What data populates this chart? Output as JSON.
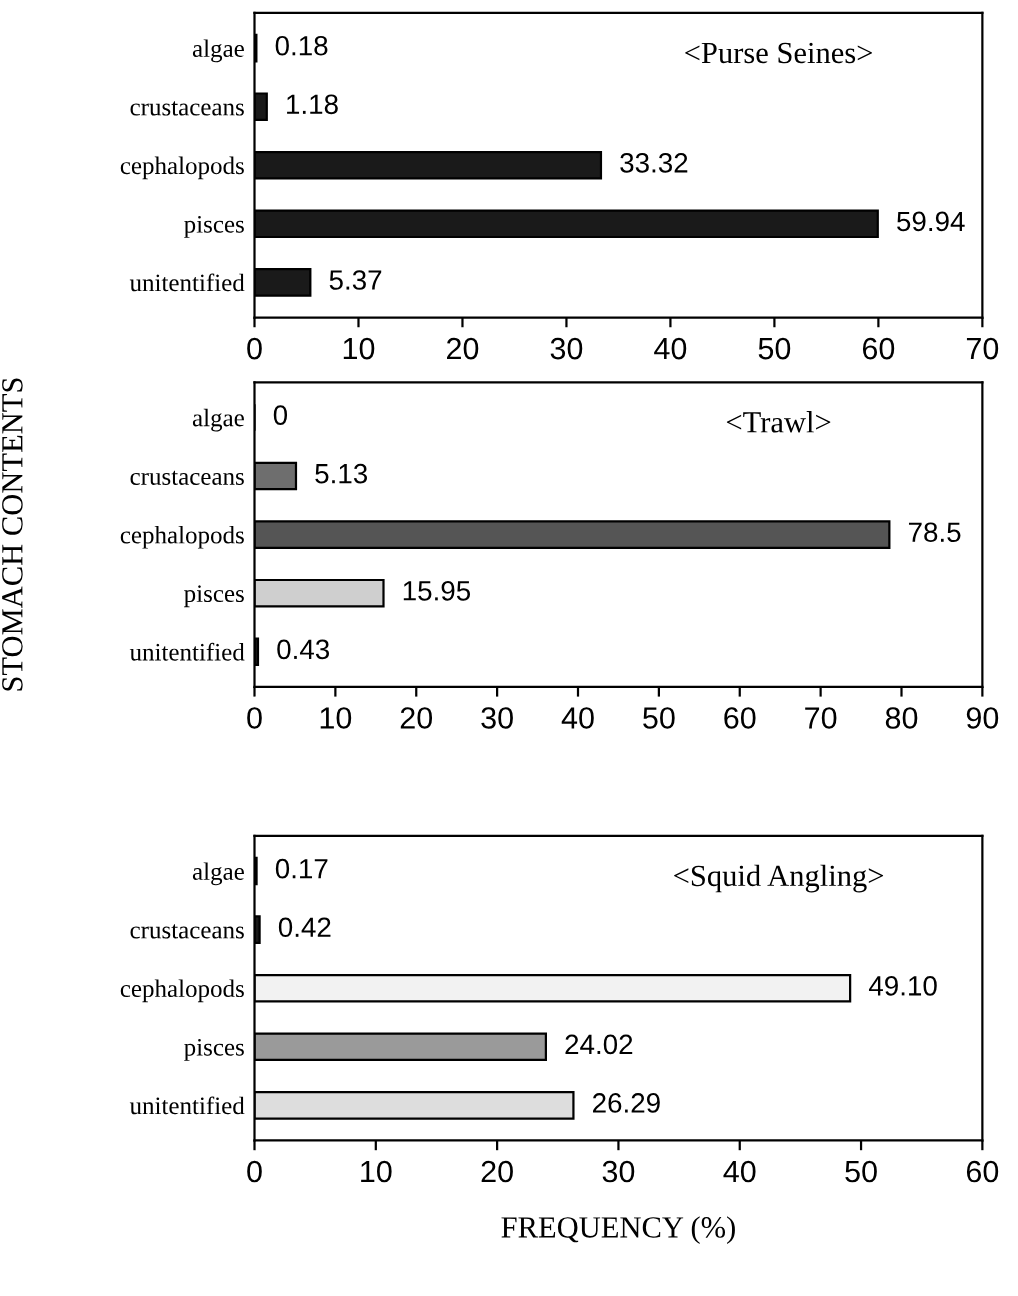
{
  "chart_data": [
    {
      "type": "bar",
      "orientation": "horizontal",
      "title": "<Purse Seines>",
      "categories": [
        "algae",
        "crustaceans",
        "cephalopods",
        "pisces",
        "unitentified"
      ],
      "values": [
        0.18,
        1.18,
        33.32,
        59.94,
        5.37
      ],
      "value_labels": [
        "0.18",
        "1.18",
        "33.32",
        "59.94",
        "5.37"
      ],
      "colors": [
        "#1a1a1a",
        "#1a1a1a",
        "#1a1a1a",
        "#1a1a1a",
        "#1a1a1a"
      ],
      "xlim": [
        0,
        70
      ],
      "xticks": [
        0,
        10,
        20,
        30,
        40,
        50,
        60,
        70
      ],
      "grid": false,
      "legend": false
    },
    {
      "type": "bar",
      "orientation": "horizontal",
      "title": "<Trawl>",
      "ylabel": "STOMACH CONTENTS",
      "categories": [
        "algae",
        "crustaceans",
        "cephalopods",
        "pisces",
        "unitentified"
      ],
      "values": [
        0,
        5.13,
        78.5,
        15.95,
        0.43
      ],
      "value_labels": [
        "0",
        "5.13",
        "78.5",
        "15.95",
        "0.43"
      ],
      "colors": [
        "#1a1a1a",
        "#6e6e6e",
        "#555555",
        "#cfcfcf",
        "#1a1a1a"
      ],
      "xlim": [
        0,
        90
      ],
      "xticks": [
        0,
        10,
        20,
        30,
        40,
        50,
        60,
        70,
        80,
        90
      ],
      "grid": false,
      "legend": false
    },
    {
      "type": "bar",
      "orientation": "horizontal",
      "title": "<Squid Angling>",
      "xlabel": "FREQUENCY (%)",
      "categories": [
        "algae",
        "crustaceans",
        "cephalopods",
        "pisces",
        "unitentified"
      ],
      "values": [
        0.17,
        0.42,
        49.1,
        24.02,
        26.29
      ],
      "value_labels": [
        "0.17",
        "0.42",
        "49.10",
        "24.02",
        "26.29"
      ],
      "colors": [
        "#1a1a1a",
        "#1a1a1a",
        "#f2f2f2",
        "#9a9a9a",
        "#dddddd"
      ],
      "xlim": [
        0,
        60
      ],
      "xticks": [
        0,
        10,
        20,
        30,
        40,
        50,
        60
      ],
      "grid": false,
      "legend": false
    }
  ]
}
